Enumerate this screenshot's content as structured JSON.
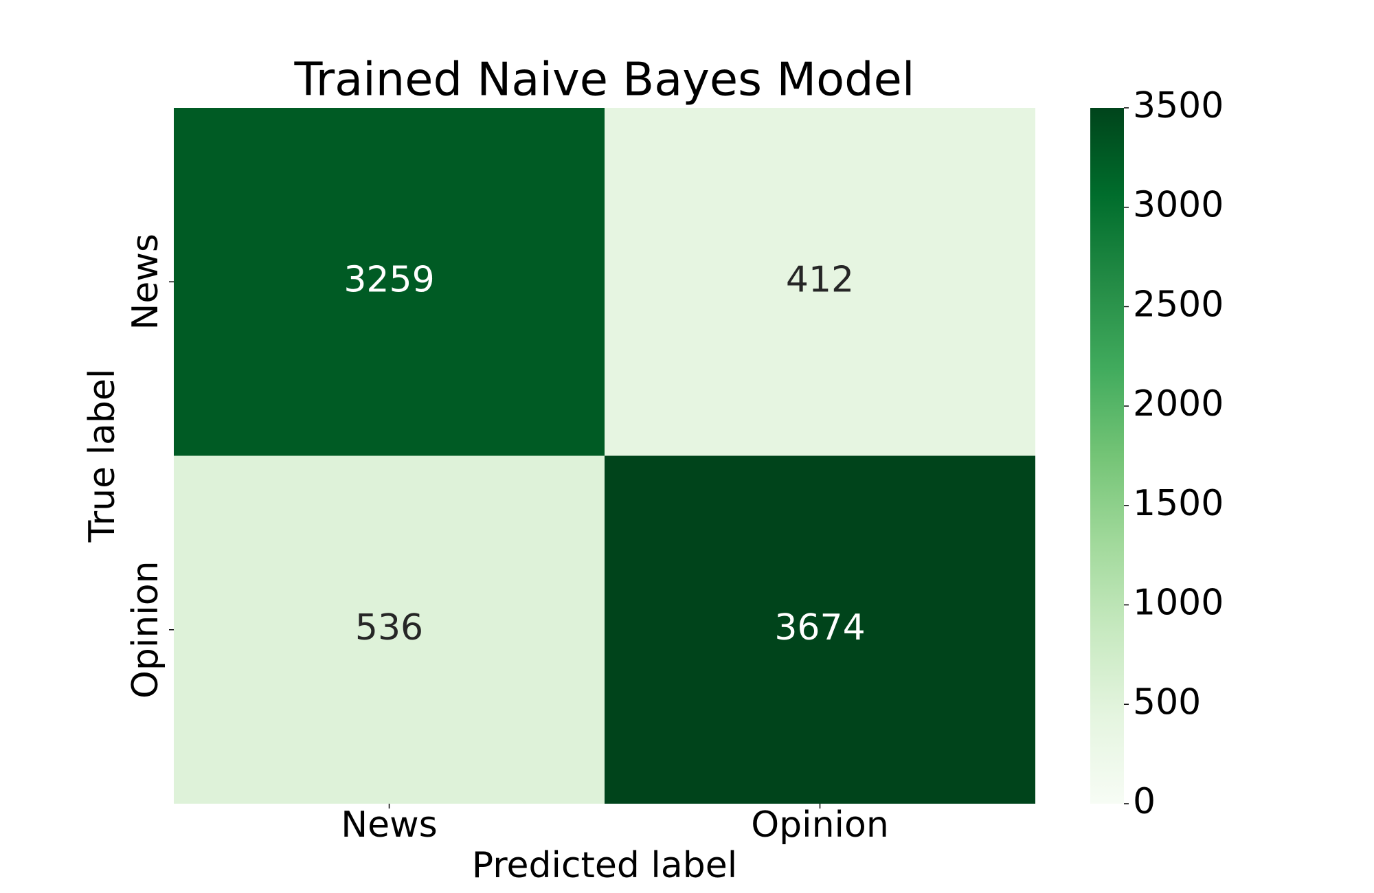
{
  "chart_data": {
    "type": "heatmap",
    "title": "Trained Naive Bayes Model",
    "xlabel": "Predicted label",
    "ylabel": "True label",
    "x_categories": [
      "News",
      "Opinion"
    ],
    "y_categories": [
      "News",
      "Opinion"
    ],
    "values": [
      [
        3259,
        412
      ],
      [
        536,
        3674
      ]
    ],
    "colormap": "Greens",
    "clim": [
      0,
      3500
    ],
    "cticks": [
      0,
      500,
      1000,
      1500,
      2000,
      2500,
      3000,
      3500
    ]
  }
}
